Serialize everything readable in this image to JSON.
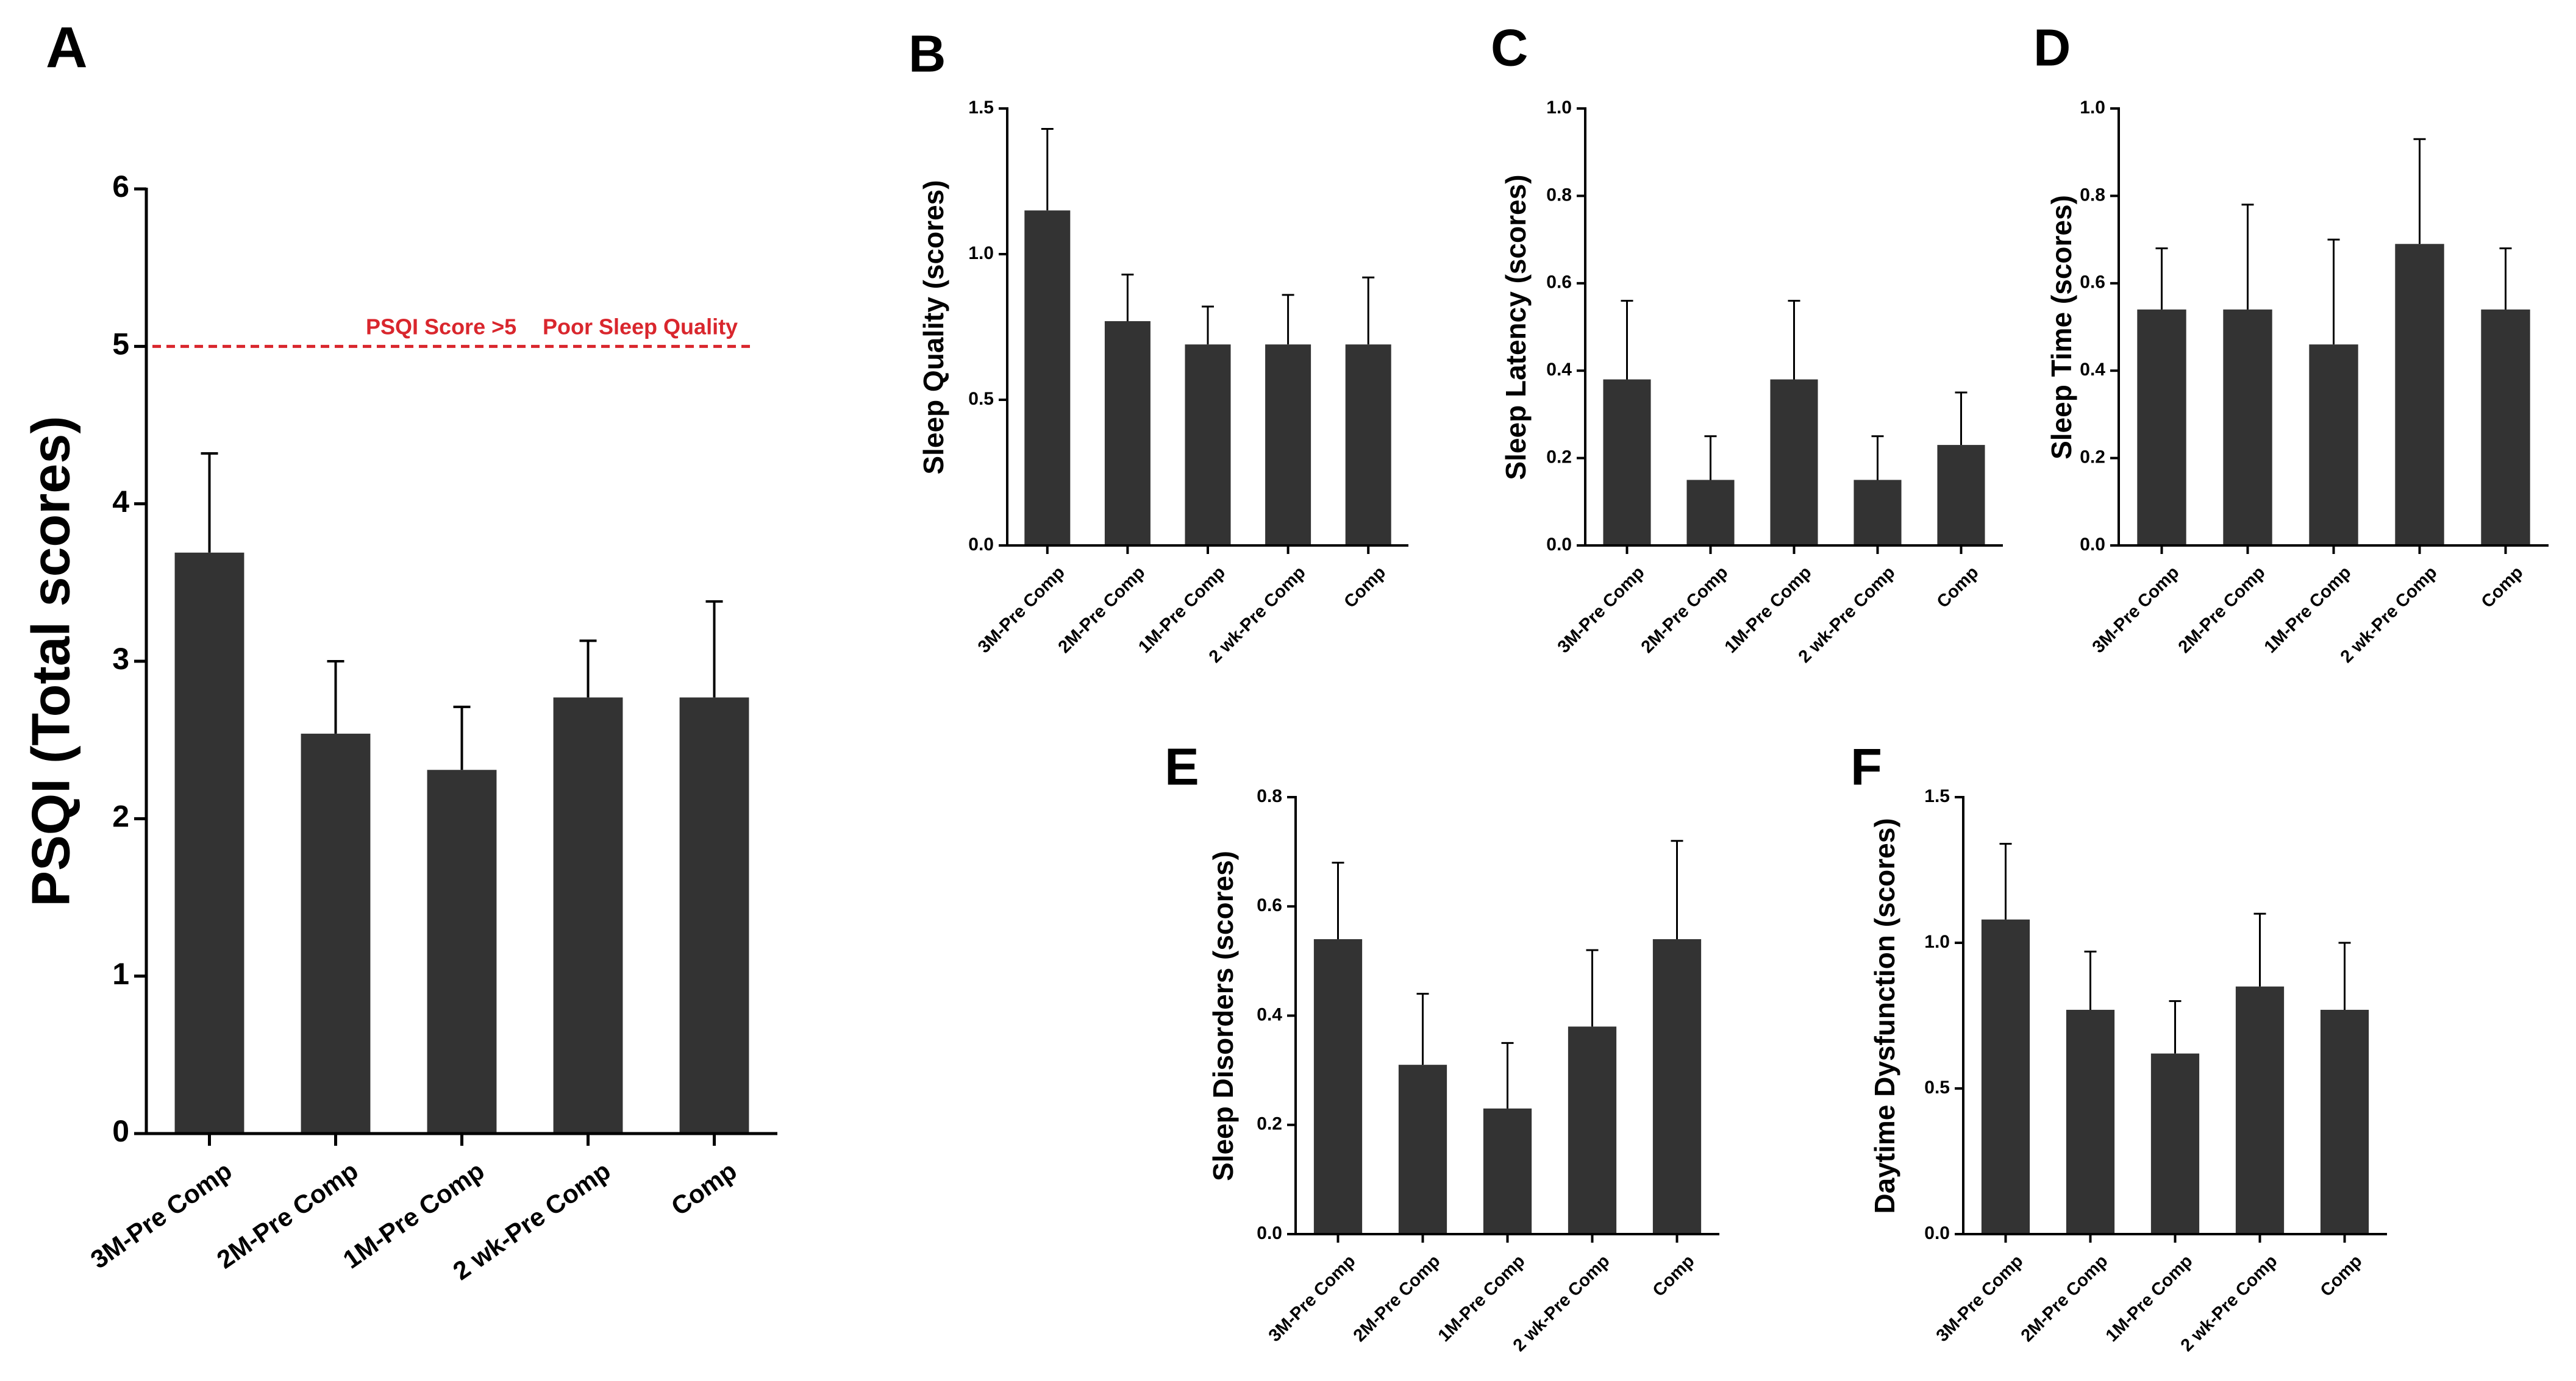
{
  "colors": {
    "bar": "#333333",
    "axis": "#000000",
    "reference": "#d9262d"
  },
  "chart_data": [
    {
      "panel": "A",
      "type": "bar",
      "categories": [
        "3M-Pre Comp",
        "2M-Pre Comp",
        "1M-Pre Comp",
        "2 wk-Pre Comp",
        "Comp"
      ],
      "values": [
        3.69,
        2.54,
        2.31,
        2.77,
        2.77
      ],
      "errors": [
        0.63,
        0.46,
        0.4,
        0.36,
        0.61
      ],
      "ylabel": "PSQI (Total scores)",
      "ylim": [
        0,
        6
      ],
      "yticks": [
        "0",
        "1",
        "2",
        "3",
        "4",
        "5",
        "6"
      ],
      "reference": {
        "value": 5,
        "labels": [
          "PSQI Score >5",
          "Poor Sleep Quality"
        ]
      }
    },
    {
      "panel": "B",
      "type": "bar",
      "categories": [
        "3M-Pre Comp",
        "2M-Pre Comp",
        "1M-Pre Comp",
        "2 wk-Pre Comp",
        "Comp"
      ],
      "values": [
        1.15,
        0.77,
        0.69,
        0.69,
        0.69
      ],
      "errors": [
        0.28,
        0.16,
        0.13,
        0.17,
        0.23
      ],
      "ylabel": "Sleep Quality (scores)",
      "ylim": [
        0,
        1.5
      ],
      "yticks": [
        "0.0",
        "0.5",
        "1.0",
        "1.5"
      ]
    },
    {
      "panel": "C",
      "type": "bar",
      "categories": [
        "3M-Pre Comp",
        "2M-Pre Comp",
        "1M-Pre Comp",
        "2 wk-Pre Comp",
        "Comp"
      ],
      "values": [
        0.38,
        0.15,
        0.38,
        0.15,
        0.23
      ],
      "errors": [
        0.18,
        0.1,
        0.18,
        0.1,
        0.12
      ],
      "ylabel": "Sleep Latency (scores)",
      "ylim": [
        0,
        1.0
      ],
      "yticks": [
        "0.0",
        "0.2",
        "0.4",
        "0.6",
        "0.8",
        "1.0"
      ]
    },
    {
      "panel": "D",
      "type": "bar",
      "categories": [
        "3M-Pre Comp",
        "2M-Pre Comp",
        "1M-Pre Comp",
        "2 wk-Pre Comp",
        "Comp"
      ],
      "values": [
        0.54,
        0.54,
        0.46,
        0.69,
        0.54
      ],
      "errors": [
        0.14,
        0.24,
        0.24,
        0.24,
        0.14
      ],
      "ylabel": "Sleep Time (scores)",
      "ylim": [
        0,
        1.0
      ],
      "yticks": [
        "0.0",
        "0.2",
        "0.4",
        "0.6",
        "0.8",
        "1.0"
      ]
    },
    {
      "panel": "E",
      "type": "bar",
      "categories": [
        "3M-Pre Comp",
        "2M-Pre Comp",
        "1M-Pre Comp",
        "2 wk-Pre Comp",
        "Comp"
      ],
      "values": [
        0.54,
        0.31,
        0.23,
        0.38,
        0.54
      ],
      "errors": [
        0.14,
        0.13,
        0.12,
        0.14,
        0.18
      ],
      "ylabel": "Sleep Disorders (scores)",
      "ylim": [
        0,
        0.8
      ],
      "yticks": [
        "0.0",
        "0.2",
        "0.4",
        "0.6",
        "0.8"
      ]
    },
    {
      "panel": "F",
      "type": "bar",
      "categories": [
        "3M-Pre Comp",
        "2M-Pre Comp",
        "1M-Pre Comp",
        "2 wk-Pre Comp",
        "Comp"
      ],
      "values": [
        1.08,
        0.77,
        0.62,
        0.85,
        0.77
      ],
      "errors": [
        0.26,
        0.2,
        0.18,
        0.25,
        0.23
      ],
      "ylabel": "Daytime Dysfunction (scores)",
      "ylim": [
        0,
        1.5
      ],
      "yticks": [
        "0.0",
        "0.5",
        "1.0",
        "1.5"
      ]
    }
  ]
}
